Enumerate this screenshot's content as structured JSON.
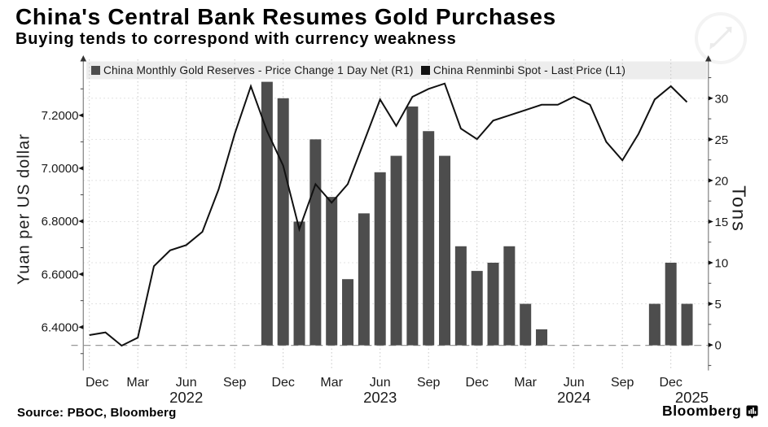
{
  "header": {
    "title": "China's Central Bank Resumes Gold Purchases",
    "subtitle": "Buying tends to correspond with currency weakness"
  },
  "legend": {
    "series1": "China Monthly Gold Reserves - Price Change 1 Day Net (R1)",
    "series2": "China Renminbi Spot - Last Price (L1)",
    "swatch1_color": "#4d4d4d",
    "swatch2_color": "#111111"
  },
  "footer": {
    "source": "Source: PBOC, Bloomberg",
    "brand": "Bloomberg"
  },
  "chart_data": {
    "type": "combo",
    "title": "China's Central Bank Resumes Gold Purchases",
    "subtitle": "Buying tends to correspond with currency weakness",
    "x_months": [
      "Dec 2021",
      "Jan 2022",
      "Feb 2022",
      "Mar 2022",
      "Apr 2022",
      "May 2022",
      "Jun 2022",
      "Jul 2022",
      "Aug 2022",
      "Sep 2022",
      "Oct 2022",
      "Nov 2022",
      "Dec 2022",
      "Jan 2023",
      "Feb 2023",
      "Mar 2023",
      "Apr 2023",
      "May 2023",
      "Jun 2023",
      "Jul 2023",
      "Aug 2023",
      "Sep 2023",
      "Oct 2023",
      "Nov 2023",
      "Dec 2023",
      "Jan 2024",
      "Feb 2024",
      "Mar 2024",
      "Apr 2024",
      "May 2024",
      "Jun 2024",
      "Jul 2024",
      "Aug 2024",
      "Sep 2024",
      "Oct 2024",
      "Nov 2024",
      "Dec 2024",
      "Jan 2025"
    ],
    "x_ticks": [
      {
        "index": 0,
        "label": "Dec"
      },
      {
        "index": 3,
        "label": "Mar"
      },
      {
        "index": 6,
        "label": "Jun"
      },
      {
        "index": 9,
        "label": "Sep"
      },
      {
        "index": 12,
        "label": "Dec"
      },
      {
        "index": 15,
        "label": "Mar"
      },
      {
        "index": 18,
        "label": "Jun"
      },
      {
        "index": 21,
        "label": "Sep"
      },
      {
        "index": 24,
        "label": "Dec"
      },
      {
        "index": 27,
        "label": "Mar"
      },
      {
        "index": 30,
        "label": "Jun"
      },
      {
        "index": 33,
        "label": "Sep"
      },
      {
        "index": 36,
        "label": "Dec"
      }
    ],
    "year_labels": [
      {
        "index": 6,
        "label": "2022"
      },
      {
        "index": 18,
        "label": "2023"
      },
      {
        "index": 30,
        "label": "2024"
      },
      {
        "index": 37.3,
        "label": "2025"
      }
    ],
    "left_axis": {
      "title": "Yuan per US dollar",
      "tick_labels": [
        "7.2000",
        "7.0000",
        "6.8000",
        "6.6000",
        "6.4000"
      ],
      "tick_values": [
        7.2,
        7.0,
        6.8,
        6.6,
        6.4
      ],
      "minor_tick_values": [
        6.3,
        6.5,
        6.7,
        6.9,
        7.1,
        7.3
      ],
      "range_note": "yuan per US dollar, linear"
    },
    "right_axis": {
      "title": "Tons",
      "tick_labels": [
        "0",
        "5",
        "10",
        "15",
        "20",
        "25",
        "30"
      ],
      "tick_values": [
        0,
        5,
        10,
        15,
        20,
        25,
        30
      ],
      "minor_tick_values": [
        -2.5,
        2.5,
        7.5,
        12.5,
        17.5,
        22.5,
        27.5,
        32.5
      ],
      "gridline_values": [
        5,
        10,
        15,
        20,
        25,
        30
      ],
      "zero_line_value": 0
    },
    "series": [
      {
        "name": "China Monthly Gold Reserves - Price Change 1 Day Net (R1)",
        "type": "bar",
        "axis": "right",
        "unit": "tons",
        "color": "#4d4d4d",
        "values": [
          null,
          null,
          null,
          null,
          null,
          null,
          null,
          null,
          null,
          null,
          null,
          32,
          30,
          15,
          25,
          18,
          8,
          16,
          21,
          23,
          29,
          26,
          23,
          12,
          9,
          10,
          12,
          5,
          1.9,
          0,
          0,
          0,
          0,
          0,
          0,
          5,
          10,
          5
        ]
      },
      {
        "name": "China Renminbi Spot - Last Price (L1)",
        "type": "line",
        "axis": "left",
        "unit": "yuan per US dollar",
        "color": "#111111",
        "values": [
          6.37,
          6.38,
          6.33,
          6.36,
          6.63,
          6.69,
          6.71,
          6.76,
          6.92,
          7.13,
          7.31,
          7.14,
          7.01,
          6.77,
          6.94,
          6.87,
          6.94,
          7.1,
          7.26,
          7.16,
          7.27,
          7.3,
          7.32,
          7.15,
          7.11,
          7.18,
          7.2,
          7.22,
          7.24,
          7.24,
          7.27,
          7.24,
          7.1,
          7.03,
          7.13,
          7.26,
          7.31,
          7.25
        ]
      }
    ]
  }
}
